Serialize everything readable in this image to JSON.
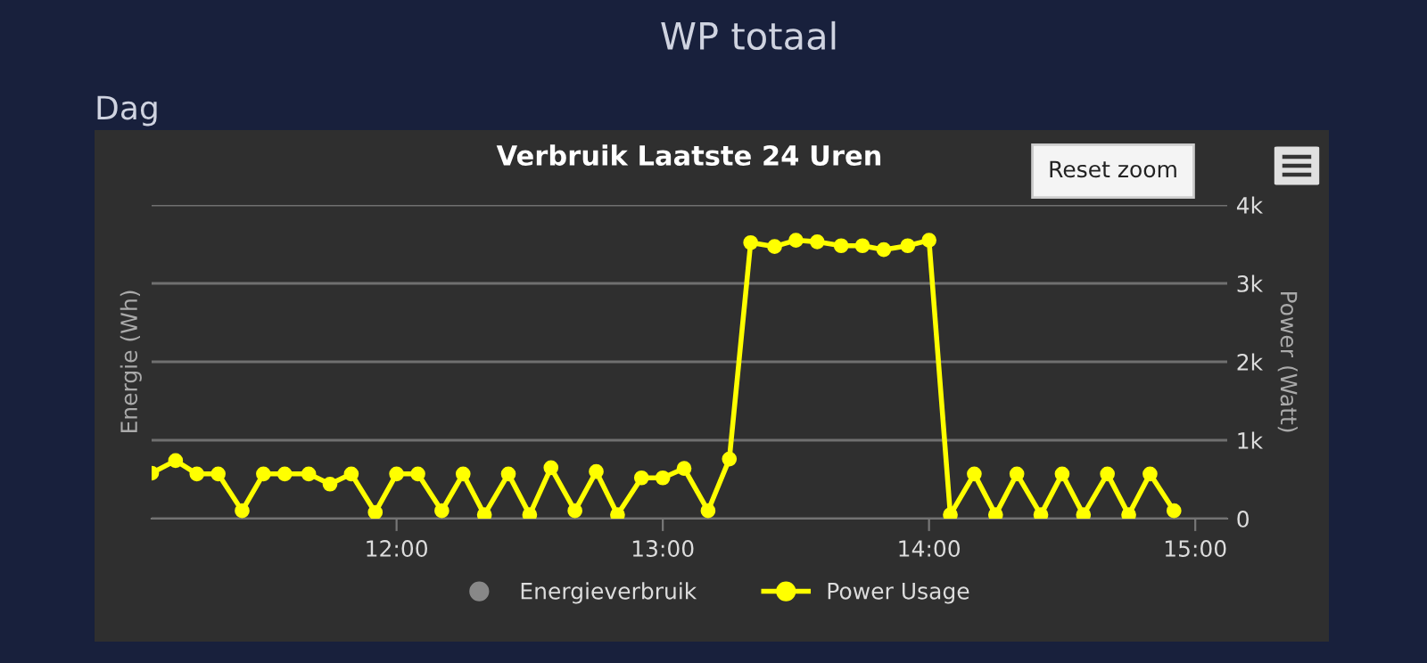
{
  "chart_data": {
    "type": "line",
    "title": "Verbruik Laatste 24 Uren",
    "annotations": [
      "WP totaal",
      "Dag",
      "Reset zoom"
    ],
    "ylabel": "Energie (Wh)",
    "y2label": "Power (Watt)",
    "x": [
      11.08,
      11.17,
      11.25,
      11.33,
      11.42,
      11.5,
      11.58,
      11.67,
      11.75,
      11.83,
      11.92,
      12,
      12.08,
      12.17,
      12.25,
      12.33,
      12.42,
      12.5,
      12.58,
      12.67,
      12.75,
      12.83,
      12.92,
      13,
      13.08,
      13.17,
      13.25,
      13.33,
      13.42,
      13.5,
      13.58,
      13.67,
      13.75,
      13.83,
      13.92,
      14,
      14.08,
      14.17,
      14.25,
      14.33,
      14.42,
      14.5,
      14.58,
      14.67,
      14.75,
      14.83,
      14.92
    ],
    "series": [
      {
        "name": "Energieverbruik",
        "color": "#888888",
        "values": [
          null,
          null,
          null,
          null,
          null,
          null,
          null,
          null,
          null,
          null,
          null,
          null,
          null,
          null,
          null,
          null,
          null,
          null,
          null,
          null,
          null,
          null,
          null,
          null,
          null,
          null,
          null,
          null,
          null,
          null,
          null,
          null,
          null,
          null,
          null,
          null,
          null,
          null,
          null,
          null,
          null,
          null,
          null,
          null,
          null,
          null,
          null
        ]
      },
      {
        "name": "Power Usage",
        "color": "#ffff00",
        "axis": "y2",
        "values": [
          580,
          740,
          570,
          570,
          100,
          570,
          570,
          570,
          440,
          570,
          80,
          570,
          570,
          100,
          570,
          50,
          570,
          50,
          650,
          100,
          600,
          50,
          520,
          520,
          640,
          100,
          760,
          3520,
          3470,
          3550,
          3530,
          3480,
          3480,
          3430,
          3480,
          3550,
          50,
          570,
          50,
          570,
          50,
          570,
          50,
          570,
          50,
          570,
          100
        ]
      }
    ],
    "xlim": [
      11.08,
      15.12
    ],
    "xticks": [
      {
        "value": 12,
        "label": "12:00"
      },
      {
        "value": 13,
        "label": "13:00"
      },
      {
        "value": 14,
        "label": "14:00"
      },
      {
        "value": 15,
        "label": "15:00"
      }
    ],
    "y2lim": [
      0,
      4000
    ],
    "y2ticks": [
      0,
      {
        "value": 1000,
        "label": "1k"
      },
      {
        "value": 2000,
        "label": "2k"
      },
      {
        "value": 3000,
        "label": "3k"
      },
      {
        "value": 4000,
        "label": "4k"
      }
    ],
    "grid": "y",
    "legend": "bottom",
    "marker": "circle",
    "line_style": "solid"
  }
}
